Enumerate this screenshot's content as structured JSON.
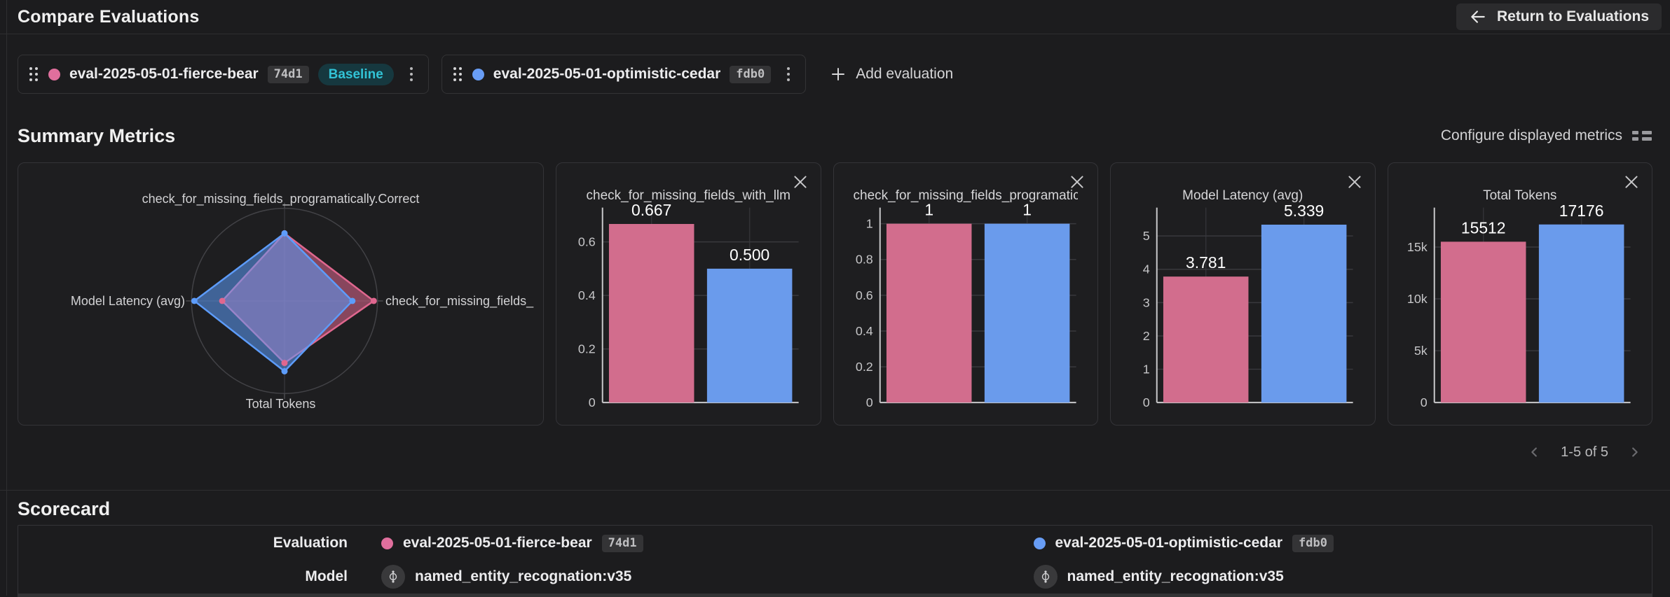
{
  "header": {
    "title": "Compare Evaluations",
    "return_label": "Return to Evaluations"
  },
  "eval_selector": {
    "evaluations": [
      {
        "name": "eval-2025-05-01-fierce-bear",
        "hash": "74d1",
        "badge": "Baseline",
        "color": "#e06f9d"
      },
      {
        "name": "eval-2025-05-01-optimistic-cedar",
        "hash": "fdb0",
        "color": "#689df5"
      }
    ],
    "add_label": "Add evaluation"
  },
  "summary_metrics": {
    "title": "Summary Metrics",
    "configure_label": "Configure displayed metrics",
    "pagination": "1-5 of 5"
  },
  "scorecard": {
    "title": "Scorecard",
    "row_labels": [
      "Evaluation",
      "Model"
    ],
    "models": [
      "named_entity_recognation:v35",
      "named_entity_recognation:v35"
    ]
  },
  "colors": {
    "bar_pink": "#d26d8d",
    "bar_blue": "#6a9bec",
    "radar_pink": "#e0678f",
    "radar_blue": "#5d9cfa",
    "baseline_badge_bg": "#16383f",
    "baseline_badge_text": "#32c3d6"
  },
  "chart_data": [
    {
      "type": "radar",
      "axes": [
        "check_for_missing_fields_programatically.Correct",
        "check_for_missing_fields_",
        "Total Tokens",
        "Model Latency (avg)"
      ],
      "series": [
        {
          "name": "eval-2025-05-01-fierce-bear",
          "color": "#e0678f",
          "values": [
            1,
            0.667,
            15512,
            3.781
          ],
          "radius_fractions": [
            0.73,
            0.96,
            0.67,
            0.67
          ]
        },
        {
          "name": "eval-2025-05-01-optimistic-cedar",
          "color": "#5d9cfa",
          "values": [
            1,
            0.5,
            17176,
            5.339
          ],
          "radius_fractions": [
            0.73,
            0.73,
            0.76,
            0.97
          ]
        }
      ]
    },
    {
      "type": "bar",
      "title": "check_for_missing_fields_with_llm",
      "categories": [
        "eval-2025-05-01-fierce-bear",
        "eval-2025-05-01-optimistic-cedar"
      ],
      "values": [
        0.667,
        0.5
      ],
      "labels": [
        "0.667",
        "0.500"
      ],
      "ticks": [
        {
          "v": 0,
          "label": "0"
        },
        {
          "v": 0.2,
          "label": "0.2"
        },
        {
          "v": 0.4,
          "label": "0.4"
        },
        {
          "v": 0.6,
          "label": "0.6"
        }
      ],
      "ymax": 0.728,
      "colors": [
        "#d26d8d",
        "#6a9bec"
      ]
    },
    {
      "type": "bar",
      "title": "check_for_missing_fields_programatically.Correct",
      "categories": [
        "eval-2025-05-01-fierce-bear",
        "eval-2025-05-01-optimistic-cedar"
      ],
      "values": [
        1,
        1
      ],
      "labels": [
        "1",
        "1"
      ],
      "ticks": [
        {
          "v": 0,
          "label": "0"
        },
        {
          "v": 0.2,
          "label": "0.2"
        },
        {
          "v": 0.4,
          "label": "0.4"
        },
        {
          "v": 0.6,
          "label": "0.6"
        },
        {
          "v": 0.8,
          "label": "0.8"
        },
        {
          "v": 1,
          "label": "1"
        }
      ],
      "ymax": 1.09,
      "colors": [
        "#d26d8d",
        "#6a9bec"
      ]
    },
    {
      "type": "bar",
      "title": "Model Latency (avg)",
      "categories": [
        "eval-2025-05-01-fierce-bear",
        "eval-2025-05-01-optimistic-cedar"
      ],
      "values": [
        3.781,
        5.339
      ],
      "labels": [
        "3.781",
        "5.339"
      ],
      "ticks": [
        {
          "v": 0,
          "label": "0"
        },
        {
          "v": 1,
          "label": "1"
        },
        {
          "v": 2,
          "label": "2"
        },
        {
          "v": 3,
          "label": "3"
        },
        {
          "v": 4,
          "label": "4"
        },
        {
          "v": 5,
          "label": "5"
        }
      ],
      "ymax": 5.85,
      "colors": [
        "#d26d8d",
        "#6a9bec"
      ]
    },
    {
      "type": "bar",
      "title": "Total Tokens",
      "categories": [
        "eval-2025-05-01-fierce-bear",
        "eval-2025-05-01-optimistic-cedar"
      ],
      "values": [
        15512,
        17176
      ],
      "labels": [
        "15512",
        "17176"
      ],
      "ticks": [
        {
          "v": 0,
          "label": "0"
        },
        {
          "v": 5000,
          "label": "5k"
        },
        {
          "v": 10000,
          "label": "10k"
        },
        {
          "v": 15000,
          "label": "15k"
        }
      ],
      "ymax": 18800,
      "colors": [
        "#d26d8d",
        "#6a9bec"
      ]
    }
  ]
}
